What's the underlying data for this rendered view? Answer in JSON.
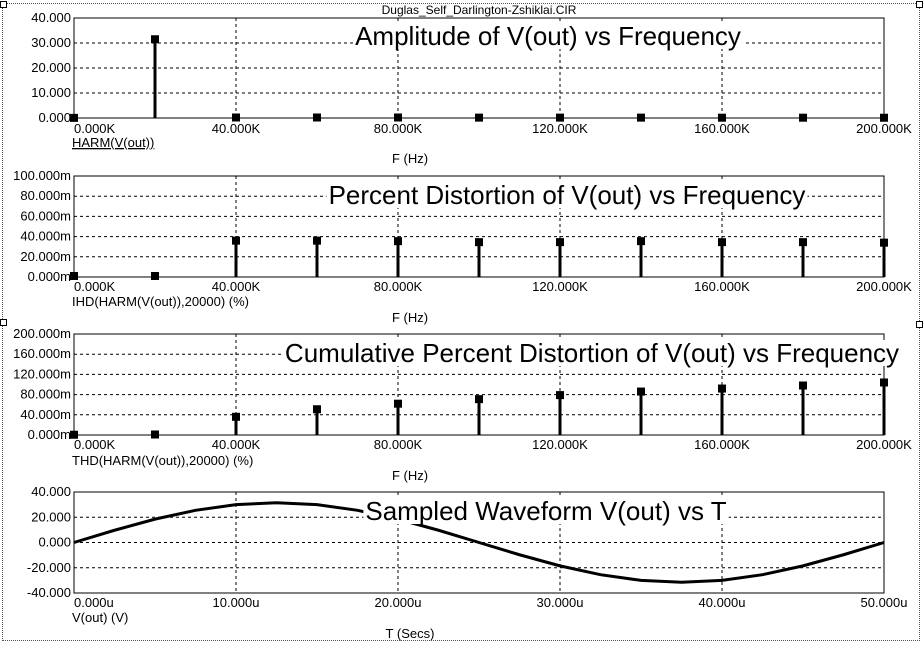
{
  "window": {
    "title": "Duglas_Self_Darlington-Zshiklai.CIR"
  },
  "chart_data": [
    {
      "type": "bar",
      "title": "Amplitude of V(out) vs Frequency",
      "trace_label": "HARM(V(out))",
      "xlabel": "F (Hz)",
      "ylabel": "",
      "xlim": [
        0,
        200000
      ],
      "ylim": [
        0,
        40
      ],
      "x_ticks": [
        "0.000K",
        "40.000K",
        "80.000K",
        "120.000K",
        "160.000K",
        "200.000K"
      ],
      "y_ticks": [
        "0.000",
        "10.000",
        "20.000",
        "30.000",
        "40.000"
      ],
      "x": [
        0,
        20000,
        40000,
        60000,
        80000,
        100000,
        120000,
        140000,
        160000,
        180000,
        200000
      ],
      "values": [
        0.05,
        31.5,
        0.2,
        0.2,
        0.2,
        0.15,
        0.15,
        0.15,
        0.12,
        0.12,
        0.1
      ]
    },
    {
      "type": "bar",
      "title": "Percent Distortion of V(out) vs Frequency",
      "trace_label": "IHD(HARM(V(out)),20000) (%)",
      "xlabel": "F (Hz)",
      "ylabel": "",
      "xlim": [
        0,
        200000
      ],
      "ylim": [
        0,
        100
      ],
      "x_ticks": [
        "0.000K",
        "40.000K",
        "80.000K",
        "120.000K",
        "160.000K",
        "200.000K"
      ],
      "y_ticks": [
        "0.000m",
        "20.000m",
        "40.000m",
        "60.000m",
        "80.000m",
        "100.000m"
      ],
      "x": [
        0,
        20000,
        40000,
        60000,
        80000,
        100000,
        120000,
        140000,
        160000,
        180000,
        200000
      ],
      "values": [
        1,
        1,
        36,
        36,
        35.5,
        34.5,
        34.5,
        35.5,
        34.5,
        34.5,
        34
      ]
    },
    {
      "type": "bar",
      "title": "Cumulative Percent Distortion of V(out) vs Frequency",
      "trace_label": "THD(HARM(V(out)),20000) (%)",
      "xlabel": "F (Hz)",
      "ylabel": "",
      "xlim": [
        0,
        200000
      ],
      "ylim": [
        0,
        200
      ],
      "x_ticks": [
        "0.000K",
        "40.000K",
        "80.000K",
        "120.000K",
        "160.000K",
        "200.000K"
      ],
      "y_ticks": [
        "0.000m",
        "40.000m",
        "80.000m",
        "120.000m",
        "160.000m",
        "200.000m"
      ],
      "x": [
        0,
        20000,
        40000,
        60000,
        80000,
        100000,
        120000,
        140000,
        160000,
        180000,
        200000
      ],
      "values": [
        0.5,
        1,
        36,
        51,
        62,
        71,
        79,
        86,
        92,
        98,
        104
      ]
    },
    {
      "type": "line",
      "title": "Sampled Waveform  V(out) vs T",
      "trace_label": "V(out) (V)",
      "xlabel": "T (Secs)",
      "ylabel": "",
      "xlim": [
        0,
        50
      ],
      "ylim": [
        -40,
        40
      ],
      "x_ticks": [
        "0.000u",
        "10.000u",
        "20.000u",
        "30.000u",
        "40.000u",
        "50.000u"
      ],
      "y_ticks": [
        "-40.000",
        "-20.000",
        "0.000",
        "20.000",
        "40.000"
      ],
      "x": [
        0,
        2.5,
        5,
        7.5,
        10,
        12.5,
        15,
        17.5,
        20,
        22.5,
        25,
        27.5,
        30,
        32.5,
        35,
        37.5,
        40,
        42.5,
        45,
        47.5,
        50
      ],
      "values": [
        0,
        9.7,
        18.5,
        25.5,
        30,
        31.5,
        30,
        25.5,
        18.5,
        9.7,
        0,
        -9.7,
        -18.5,
        -25.5,
        -30,
        -31.5,
        -30,
        -25.5,
        -18.5,
        -9.7,
        0
      ]
    }
  ]
}
